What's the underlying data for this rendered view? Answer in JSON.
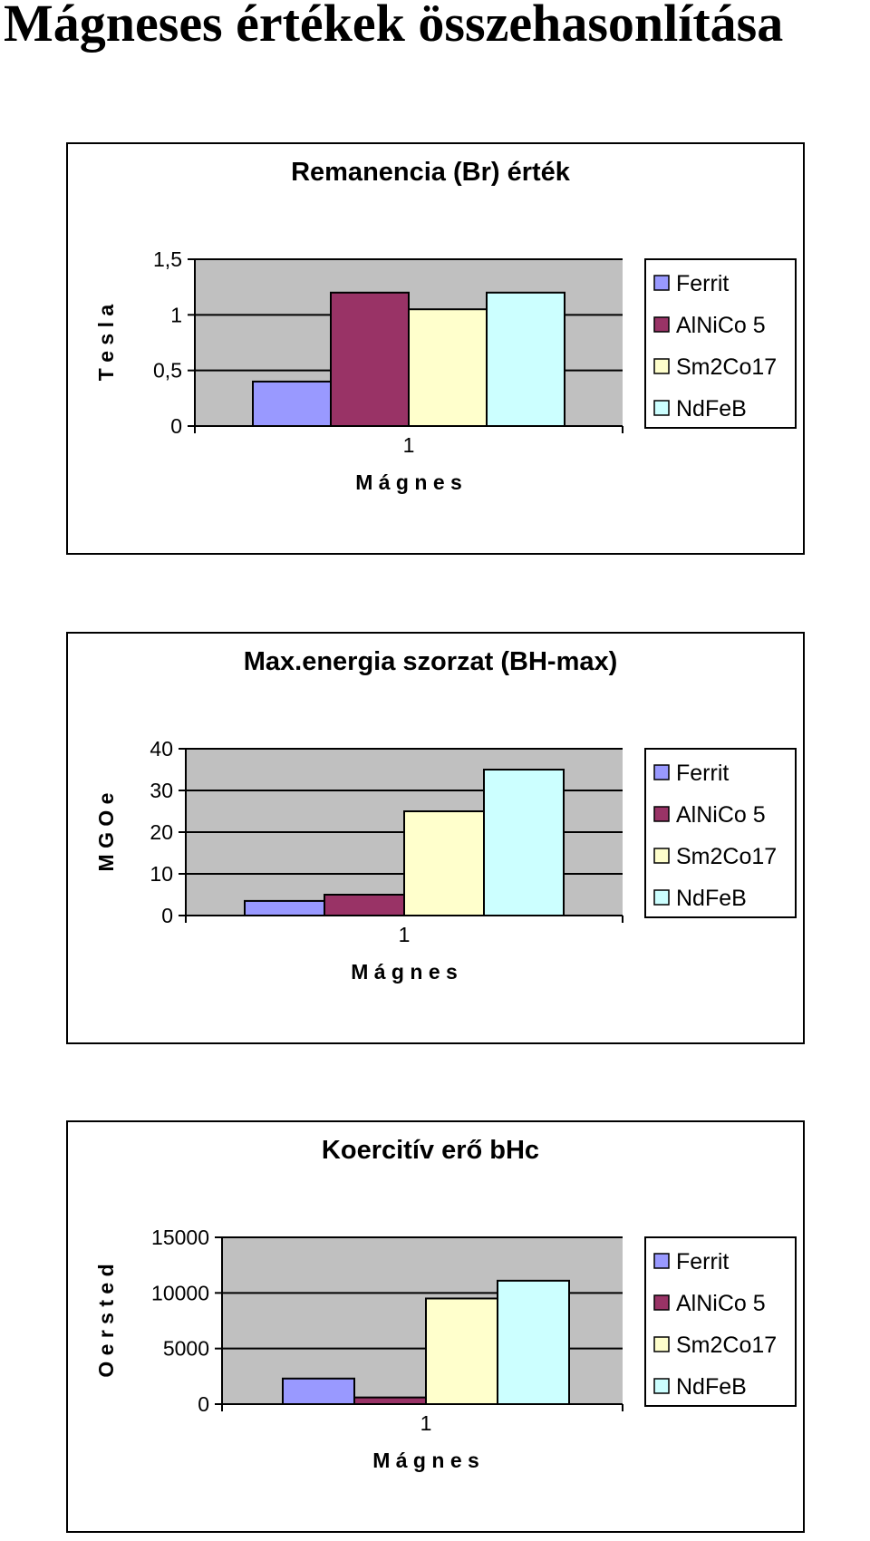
{
  "page": {
    "title": "Mágneses értékek összehasonlítása"
  },
  "chart_data": [
    {
      "type": "bar",
      "title": "Remanencia (Br) érték",
      "xlabel": "M á g n e s",
      "ylabel": "T e s l a",
      "categories": [
        "1"
      ],
      "ylim": [
        0,
        1.5
      ],
      "yticks": [
        "0",
        "0,5",
        "1",
        "1,5"
      ],
      "ytick_values": [
        0,
        0.5,
        1,
        1.5
      ],
      "grid": true,
      "legend_position": "right",
      "series": [
        {
          "name": "Ferrit",
          "values": [
            0.4
          ],
          "color": "#9999ff"
        },
        {
          "name": "AlNiCo 5",
          "values": [
            1.2
          ],
          "color": "#993366"
        },
        {
          "name": "Sm2Co17",
          "values": [
            1.05
          ],
          "color": "#ffffcc"
        },
        {
          "name": "NdFeB",
          "values": [
            1.2
          ],
          "color": "#ccffff"
        }
      ]
    },
    {
      "type": "bar",
      "title": "Max.energia szorzat (BH-max)",
      "xlabel": "M á g n e s",
      "ylabel": "M G O e",
      "categories": [
        "1"
      ],
      "ylim": [
        0,
        40
      ],
      "yticks": [
        "0",
        "10",
        "20",
        "30",
        "40"
      ],
      "ytick_values": [
        0,
        10,
        20,
        30,
        40
      ],
      "grid": true,
      "legend_position": "right",
      "series": [
        {
          "name": "Ferrit",
          "values": [
            3.5
          ],
          "color": "#9999ff"
        },
        {
          "name": "AlNiCo 5",
          "values": [
            5
          ],
          "color": "#993366"
        },
        {
          "name": "Sm2Co17",
          "values": [
            25
          ],
          "color": "#ffffcc"
        },
        {
          "name": "NdFeB",
          "values": [
            35
          ],
          "color": "#ccffff"
        }
      ]
    },
    {
      "type": "bar",
      "title": "Koercitív erő  bHc",
      "xlabel": "M á g n e s",
      "ylabel": "O e r s t e d",
      "categories": [
        "1"
      ],
      "ylim": [
        0,
        15000
      ],
      "yticks": [
        "0",
        "5000",
        "10000",
        "15000"
      ],
      "ytick_values": [
        0,
        5000,
        10000,
        15000
      ],
      "grid": true,
      "legend_position": "right",
      "series": [
        {
          "name": "Ferrit",
          "values": [
            2300
          ],
          "color": "#9999ff"
        },
        {
          "name": "AlNiCo 5",
          "values": [
            600
          ],
          "color": "#993366"
        },
        {
          "name": "Sm2Co17",
          "values": [
            9500
          ],
          "color": "#ffffcc"
        },
        {
          "name": "NdFeB",
          "values": [
            11100
          ],
          "color": "#ccffff"
        }
      ]
    }
  ]
}
